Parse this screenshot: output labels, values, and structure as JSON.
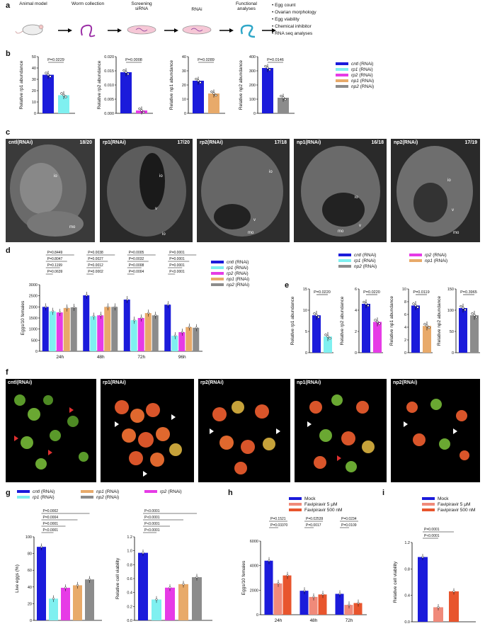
{
  "panel_letters": {
    "a": "a",
    "b": "b",
    "c": "c",
    "d": "d",
    "e": "e",
    "f": "f",
    "g": "g",
    "h": "h",
    "i": "i"
  },
  "colors": {
    "cntl": "#1b1bdb",
    "rp1": "#7ff0f0",
    "rp2": "#e63be6",
    "np1": "#e8aa6a",
    "np2": "#8c8c8c",
    "mock": "#1b1bdb",
    "fav5": "#f08a7a",
    "fav500": "#e8552d"
  },
  "workflow": {
    "steps": [
      "Animal model",
      "Worm collection",
      "Screening siRNA",
      "RNAi",
      "Functional analyses"
    ],
    "bullets": [
      "Egg count",
      "Ovarian morphology",
      "Egg viability",
      "Chemical inhibitor",
      "RNA seq analyses"
    ]
  },
  "rnai_legend": {
    "genes": [
      "cntl",
      "rp1",
      "rp2",
      "np1",
      "np2"
    ],
    "suffix": "(RNAi)"
  },
  "micro_c": [
    {
      "label": "cntl(RNAi)",
      "count": "18/20"
    },
    {
      "label": "rp1(RNAi)",
      "count": "17/20"
    },
    {
      "label": "rp2(RNAi)",
      "count": "17/18"
    },
    {
      "label": "np1(RNAi)",
      "count": "16/18"
    },
    {
      "label": "np2(RNAi)",
      "count": "17/19"
    }
  ],
  "micro_annotations": [
    "io",
    "mo",
    "v"
  ],
  "flu_f": [
    "cntl(RNAi)",
    "rp1(RNAi)",
    "rp2(RNAi)",
    "np1(RNAi)",
    "np2(RNAi)"
  ],
  "mock_legend": [
    "Mock",
    "Favipiravir 5 μM",
    "Favipiravir 500 nM"
  ],
  "chart_data": [
    {
      "id": "b1",
      "type": "bar",
      "ylabel": "Relative rp1 abundance",
      "yticks": [
        "0",
        "10",
        "20",
        "30",
        "40",
        "50"
      ],
      "ylim": [
        0,
        50
      ],
      "categories": [
        "cntl",
        "rp1"
      ],
      "values": [
        34,
        16
      ],
      "p": "P=0.0229"
    },
    {
      "id": "b2",
      "type": "bar",
      "ylabel": "Relative rp2 abundance",
      "yticks": [
        "0.000",
        "0.005",
        "0.010",
        "0.015",
        "0.020"
      ],
      "ylim": [
        0,
        0.02
      ],
      "categories": [
        "cntl",
        "rp2"
      ],
      "values": [
        0.0145,
        0.001
      ],
      "p": "P=0.0008"
    },
    {
      "id": "b3",
      "type": "bar",
      "ylabel": "Relative np1 abundance",
      "yticks": [
        "0",
        "10",
        "20",
        "30",
        "40"
      ],
      "ylim": [
        0,
        40
      ],
      "categories": [
        "cntl",
        "np1"
      ],
      "values": [
        23,
        14
      ],
      "p": "P=0.0289"
    },
    {
      "id": "b4",
      "type": "bar",
      "ylabel": "Relative np2 abundance",
      "yticks": [
        "0",
        "100",
        "200",
        "300",
        "400"
      ],
      "ylim": [
        0,
        400
      ],
      "categories": [
        "cntl",
        "np2"
      ],
      "values": [
        320,
        110
      ],
      "p": "P=0.0146"
    },
    {
      "id": "d",
      "type": "bar",
      "ylabel": "Eggs/10 females",
      "yticks": [
        "0",
        "500",
        "1000",
        "1500",
        "2000",
        "2500",
        "3000"
      ],
      "ylim": [
        0,
        3000
      ],
      "groups": [
        "24h",
        "48h",
        "72h",
        "96h"
      ],
      "series": [
        {
          "name": "cntl",
          "values": [
            2000,
            2520,
            2330,
            2100
          ]
        },
        {
          "name": "rp1",
          "values": [
            1800,
            1580,
            1400,
            700
          ]
        },
        {
          "name": "rp2",
          "values": [
            1750,
            1620,
            1500,
            860
          ]
        },
        {
          "name": "np1",
          "values": [
            1950,
            2000,
            1720,
            1090
          ]
        },
        {
          "name": "np2",
          "values": [
            1980,
            2000,
            1620,
            1060
          ]
        }
      ],
      "pvals": [
        [
          "P=0.8449",
          "P=0.8047",
          "P=0.1199",
          "P=0.0639"
        ],
        [
          "P=0.0038",
          "P=0.0027",
          "P=0.0012",
          "P=0.0002"
        ],
        [
          "P=0.0005",
          "P=0.0032",
          "P=0.0008",
          "P=0.0004"
        ],
        [
          "P=0.0001",
          "P=0.0001",
          "P=0.0001",
          "P<0.0001"
        ]
      ]
    },
    {
      "id": "e1",
      "type": "bar",
      "ylabel": "Relative rp1 abundance",
      "yticks": [
        "0",
        "5",
        "10",
        "15"
      ],
      "ylim": [
        0,
        15
      ],
      "categories": [
        "cntl",
        "rp1"
      ],
      "values": [
        8.8,
        3.8
      ],
      "p": "P=0.0220"
    },
    {
      "id": "e2",
      "type": "bar",
      "ylabel": "Relative rp2 abundance",
      "yticks": [
        "0",
        "2",
        "4",
        "6"
      ],
      "ylim": [
        0,
        6
      ],
      "categories": [
        "cntl",
        "rp2"
      ],
      "values": [
        4.6,
        2.9
      ],
      "p": "P=0.0220"
    },
    {
      "id": "e3",
      "type": "bar",
      "ylabel": "Relative np1 abundance",
      "yticks": [
        "0",
        "2",
        "4",
        "6",
        "8",
        "10"
      ],
      "ylim": [
        0,
        10
      ],
      "categories": [
        "cntl",
        "np1"
      ],
      "values": [
        7.4,
        4.2
      ],
      "p": "P=0.0119"
    },
    {
      "id": "e4",
      "type": "bar",
      "ylabel": "Relative np2 abundance",
      "yticks": [
        "0",
        "50",
        "100",
        "150"
      ],
      "ylim": [
        0,
        150
      ],
      "categories": [
        "cntl",
        "np2"
      ],
      "values": [
        105,
        88
      ],
      "p": "P=0.3965"
    },
    {
      "id": "g1",
      "type": "bar",
      "ylabel": "Live eggs (%)",
      "yticks": [
        "0",
        "20",
        "40",
        "60",
        "80",
        "100"
      ],
      "ylim": [
        0,
        100
      ],
      "categories": [
        "cntl",
        "rp1",
        "rp2",
        "np1",
        "np2"
      ],
      "values": [
        88,
        26,
        39,
        42,
        49
      ],
      "pvals": [
        "P=0.0002",
        "P=0.0004",
        "P=0.0001",
        "P<0.0001"
      ]
    },
    {
      "id": "g2",
      "type": "bar",
      "ylabel": "Relative cell viability",
      "yticks": [
        "0.0",
        "0.2",
        "0.4",
        "0.6",
        "0.8",
        "1.0",
        "1.2"
      ],
      "ylim": [
        0,
        1.2
      ],
      "categories": [
        "cntl",
        "rp1",
        "rp2",
        "np1",
        "np2"
      ],
      "values": [
        0.97,
        0.3,
        0.47,
        0.52,
        0.62
      ],
      "pvals": [
        "P<0.0001",
        "P<0.0001",
        "P<0.0001",
        "P<0.0001"
      ]
    },
    {
      "id": "h",
      "type": "bar",
      "ylabel": "Eggs/10 females",
      "yticks": [
        "0",
        "2000",
        "4000",
        "6000"
      ],
      "ylim": [
        0,
        6000
      ],
      "groups": [
        "24h",
        "48h",
        "72h"
      ],
      "series": [
        {
          "name": "Mock",
          "values": [
            4400,
            1950,
            1700
          ]
        },
        {
          "name": "Favipiravir 5 μM",
          "values": [
            2550,
            1450,
            800
          ]
        },
        {
          "name": "Favipiravir 500 nM",
          "values": [
            3200,
            1650,
            950
          ]
        }
      ],
      "pvals": [
        [
          "P=0.1521",
          "P=0.03370"
        ],
        [
          "P=0.02539",
          "P=0.0017"
        ],
        [
          "P=0.0234",
          "P=0.0109"
        ]
      ]
    },
    {
      "id": "i",
      "type": "bar",
      "ylabel": "Relative cell viability",
      "yticks": [
        "0.0",
        "0.4",
        "0.8",
        "1.2"
      ],
      "ylim": [
        0,
        1.2
      ],
      "categories": [
        "Mock",
        "Favipiravir 5 μM",
        "Favipiravir 500 nM"
      ],
      "values": [
        0.98,
        0.22,
        0.46
      ],
      "pvals": [
        "P=0.0001",
        "P<0.0001"
      ]
    }
  ]
}
